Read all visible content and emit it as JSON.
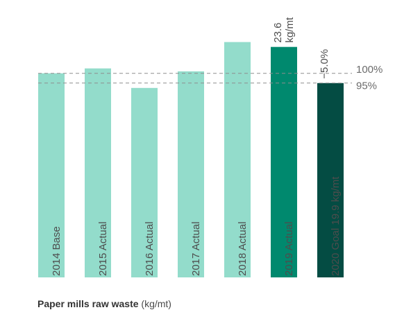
{
  "chart_data": {
    "type": "bar",
    "title": "",
    "caption": {
      "main": "Paper mills raw waste",
      "unit": "(kg/mt)"
    },
    "categories": [
      "2014 Base",
      "2015 Actual",
      "2016 Actual",
      "2017 Actual",
      "2018 Actual",
      "2019 Actual",
      "2020 Goal 19.9 kg/mt"
    ],
    "values": [
      20.9,
      21.4,
      19.4,
      21.1,
      24.1,
      23.6,
      19.9
    ],
    "colors": [
      "#93dccb",
      "#93dccb",
      "#93dccb",
      "#93dccb",
      "#93dccb",
      "#00896e",
      "#044c43"
    ],
    "ylim": [
      0,
      24.5
    ],
    "reference_lines": [
      {
        "label": "100%",
        "value": 20.9,
        "style": "dashed"
      },
      {
        "label": "95%",
        "value": 19.9,
        "style": "dashed"
      }
    ],
    "annotations": [
      {
        "category": "2019 Actual",
        "lines": [
          "23.6",
          "kg/mt"
        ]
      },
      {
        "category": "2020 Goal 19.9 kg/mt",
        "lines": [
          "−5.0%"
        ]
      }
    ],
    "grid": false,
    "legend": "none"
  }
}
